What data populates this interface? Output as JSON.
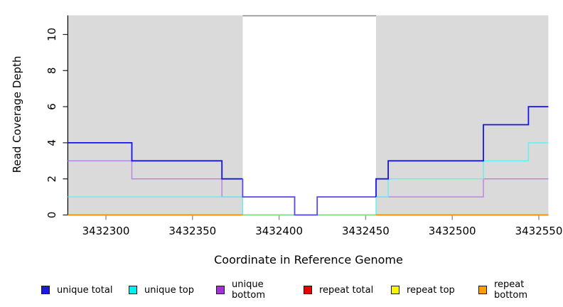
{
  "chart_data": {
    "type": "line",
    "step": true,
    "title": "",
    "xlabel": "Coordinate in Reference Genome",
    "ylabel": "Read Coverage Depth",
    "xlim": [
      3432278,
      3432555.5
    ],
    "ylim": [
      0,
      11.06
    ],
    "xticks": [
      "3432300",
      "3432350",
      "3432400",
      "3432450",
      "3432500",
      "3432550"
    ],
    "xtick_values": [
      3432300,
      3432350,
      3432400,
      3432450,
      3432500,
      3432550
    ],
    "yticks": [
      "0",
      "2",
      "4",
      "6",
      "8",
      "10"
    ],
    "ytick_values": [
      0,
      2,
      4,
      6,
      8,
      10
    ],
    "grid": false,
    "legend_position": "bottom",
    "plot_background": "#FFFFFF",
    "shaded_regions": [
      {
        "x0": 3432278,
        "x1": 3432379,
        "color": "#DADADA"
      },
      {
        "x0": 3432456,
        "x1": 3432555.5,
        "color": "#DADADA"
      }
    ],
    "gap_top_border": {
      "x0": 3432379,
      "x1": 3432456,
      "color": "#8A8A8A"
    },
    "series": [
      {
        "id": "unique-bottom",
        "legend_label": "unique bottom",
        "width": 1.4,
        "segments": [
          {
            "color": "#B77FE2",
            "points": [
              [
                3432278,
                3
              ],
              [
                3432315,
                2
              ],
              [
                3432367,
                1
              ],
              [
                3432409,
                0
              ],
              [
                3432422,
                1
              ],
              [
                3432518,
                2
              ],
              [
                3432555.5,
                2
              ]
            ]
          }
        ]
      },
      {
        "id": "unique-top",
        "legend_label": "unique top",
        "width": 1.4,
        "segments": [
          {
            "color": "#63EFEF",
            "points": [
              [
                3432278,
                1
              ],
              [
                3432379,
                0
              ],
              [
                3432456,
                1
              ],
              [
                3432463,
                2
              ],
              [
                3432518,
                3
              ],
              [
                3432544,
                4
              ],
              [
                3432555.5,
                4
              ]
            ]
          }
        ]
      },
      {
        "id": "baseline-overlap-middle",
        "legend_label": "",
        "width": 1.5,
        "segments": [
          {
            "color": "#8BD98B",
            "points": [
              [
                3432379,
                0
              ],
              [
                3432456,
                0
              ]
            ]
          }
        ]
      },
      {
        "id": "repeat-bottom",
        "legend_label": "repeat bottom",
        "width": 1.8,
        "segments": [
          {
            "color": "#FF9100",
            "points": [
              [
                3432278,
                0
              ],
              [
                3432379,
                0
              ]
            ]
          },
          {
            "color": "#FF9100",
            "points": [
              [
                3432456,
                0
              ],
              [
                3432555.5,
                0
              ]
            ]
          }
        ]
      },
      {
        "id": "unique-total",
        "legend_label": "unique total",
        "width": 1.8,
        "segments": [
          {
            "color": "#1414E6",
            "points": [
              [
                3432278,
                4
              ],
              [
                3432315,
                3
              ],
              [
                3432367,
                2
              ],
              [
                3432379,
                2
              ]
            ]
          },
          {
            "color": "#5B48EF",
            "points": [
              [
                3432379,
                2
              ],
              [
                3432379,
                1
              ],
              [
                3432409,
                0
              ],
              [
                3432422,
                1
              ],
              [
                3432456,
                1
              ]
            ]
          },
          {
            "color": "#1414E6",
            "points": [
              [
                3432456,
                1
              ],
              [
                3432456,
                2
              ],
              [
                3432463,
                3
              ],
              [
                3432518,
                5
              ],
              [
                3432544,
                6
              ],
              [
                3432555.5,
                6
              ]
            ]
          }
        ]
      }
    ],
    "legend": [
      {
        "label": "unique total",
        "color": "#1A1AE0"
      },
      {
        "label": "unique top",
        "color": "#00EEEE"
      },
      {
        "label": "unique bottom",
        "color": "#A330D9"
      },
      {
        "label": "repeat total",
        "color": "#E80000"
      },
      {
        "label": "repeat top",
        "color": "#F5F500"
      },
      {
        "label": "repeat bottom",
        "color": "#FF9E00"
      }
    ]
  }
}
